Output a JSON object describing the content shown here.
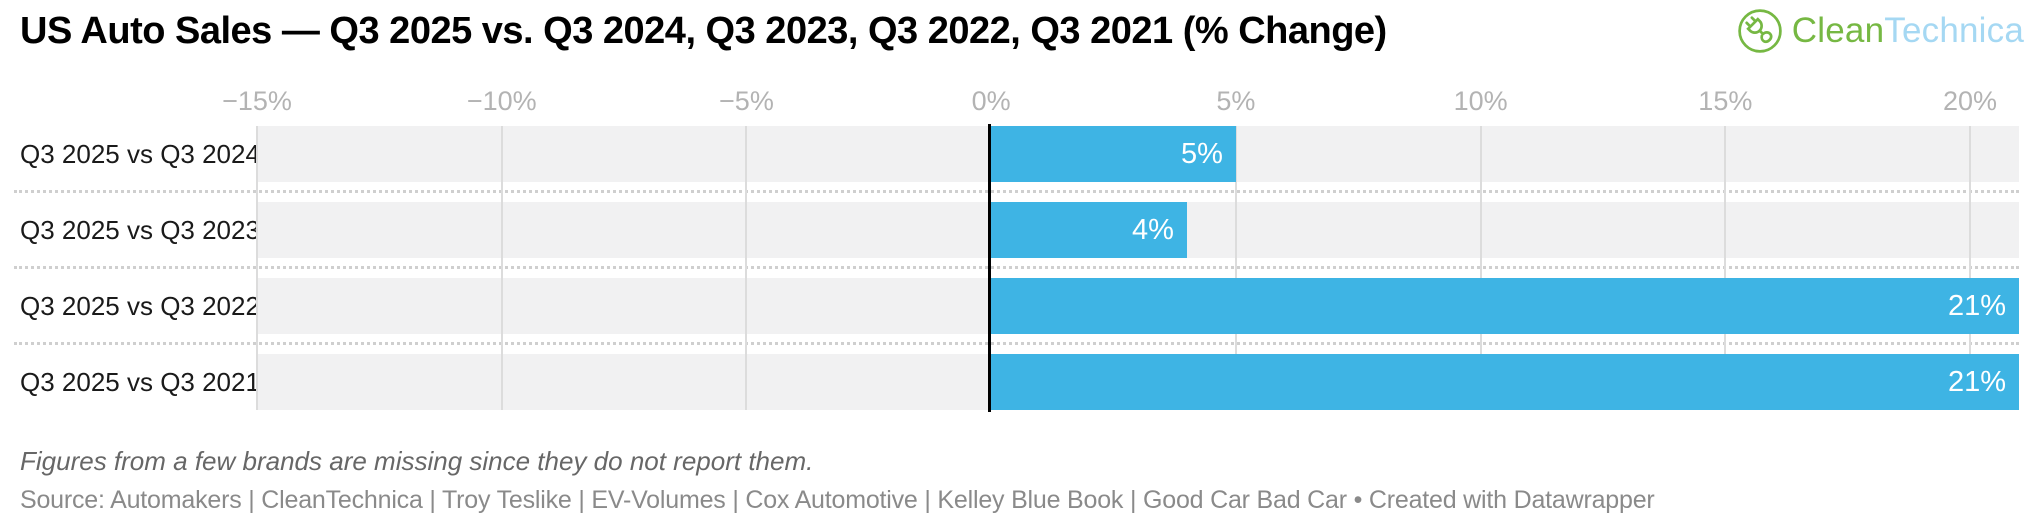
{
  "header": {
    "title": "US Auto Sales — Q3 2025 vs. Q3 2024, Q3 2023, Q3 2022, Q3 2021 (% Change)",
    "logo": {
      "part1": "Clean",
      "part2": "Technica",
      "icon": "cleantechnica-plug-icon",
      "green": "#76b843",
      "light_blue": "#a5d8f3"
    }
  },
  "chart_data": {
    "type": "bar",
    "orientation": "horizontal",
    "title": "US Auto Sales — Q3 2025 vs. Q3 2024, Q3 2023, Q3 2022, Q3 2021 (% Change)",
    "categories": [
      "Q3 2025 vs Q3 2024",
      "Q3 2025 vs Q3 2023",
      "Q3 2025 vs Q3 2022",
      "Q3 2025 vs Q3 2021"
    ],
    "values": [
      5,
      4,
      21,
      21
    ],
    "value_labels": [
      "5%",
      "4%",
      "21%",
      "21%"
    ],
    "xlabel": "",
    "ylabel": "",
    "xlim": [
      -15,
      21
    ],
    "axis_ticks": [
      {
        "value": -15,
        "label": "−15%"
      },
      {
        "value": -10,
        "label": "−10%"
      },
      {
        "value": -5,
        "label": "−5%"
      },
      {
        "value": 0,
        "label": "0%"
      },
      {
        "value": 5,
        "label": "5%"
      },
      {
        "value": 10,
        "label": "10%"
      },
      {
        "value": 15,
        "label": "15%"
      },
      {
        "value": 20,
        "label": "20%"
      }
    ],
    "grid": true,
    "legend": false,
    "axis_position": "top",
    "bar_color": "#3eb4e4",
    "track_color": "#f1f1f2",
    "gridline_color": "#dcdcdc",
    "zero_line_color": "#000000",
    "value_label_color": "#ffffff"
  },
  "footer": {
    "footnote": "Figures from a few brands are missing since they do not report them.",
    "source": "Source: Automakers | CleanTechnica | Troy Teslike | EV-Volumes | Cox Automotive | Kelley Blue Book | Good Car Bad Car • Created with Datawrapper"
  }
}
